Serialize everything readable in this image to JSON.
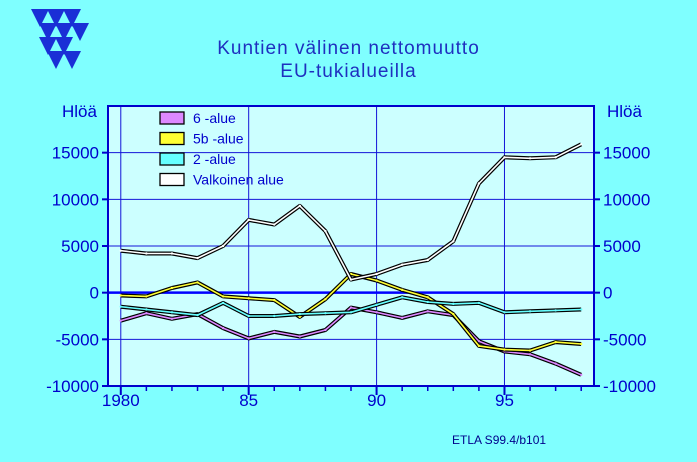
{
  "logo": {
    "name": "etla-logo",
    "color": "#1a2fd6"
  },
  "title_line1": "Kuntien  välinen  nettomuutto",
  "title_line2": "EU-tukialueilla",
  "source_note": "ETLA S99.4/b101",
  "colors": {
    "background": "#7fffff",
    "plot_background": "#ccffff",
    "axis": "#0000cc",
    "zero_line": "#0000ff",
    "grid": "#1414d8"
  },
  "chart_data": {
    "type": "line",
    "title": "Kuntien  välinen  nettomuutto EU-tukialueilla",
    "ylabel_left": "Hlöä",
    "ylabel_right": "Hlöä",
    "xlim": [
      1979.5,
      1998.5
    ],
    "ylim": [
      -10000,
      20000
    ],
    "x_ticks": [
      1980,
      1985,
      1990,
      1995
    ],
    "x_tick_labels": [
      "1980",
      "85",
      "90",
      "95"
    ],
    "y_ticks": [
      -10000,
      -5000,
      0,
      5000,
      10000,
      15000
    ],
    "y_tick_labels": [
      "-10000",
      "-5000",
      "0",
      "5000",
      "10000",
      "15000"
    ],
    "grid": true,
    "legend_position": "top-left",
    "x": [
      1980,
      1981,
      1982,
      1983,
      1984,
      1985,
      1986,
      1987,
      1988,
      1989,
      1990,
      1991,
      1992,
      1993,
      1994,
      1995,
      1996,
      1997,
      1998
    ],
    "series": [
      {
        "name": "6 -alue",
        "color": "#dd88ff",
        "values": [
          -3000,
          -2200,
          -2800,
          -2300,
          -3800,
          -4900,
          -4200,
          -4700,
          -4000,
          -1600,
          -2100,
          -2700,
          -2000,
          -2400,
          -5200,
          -6300,
          -6600,
          -7600,
          -8800
        ]
      },
      {
        "name": "5b -alue",
        "color": "#ffff33",
        "values": [
          -300,
          -400,
          500,
          1100,
          -400,
          -600,
          -800,
          -2600,
          -700,
          2000,
          1300,
          300,
          -500,
          -2300,
          -5700,
          -6100,
          -6200,
          -5300,
          -5500
        ]
      },
      {
        "name": "2 -alue",
        "color": "#66ffff",
        "values": [
          -1500,
          -1800,
          -2100,
          -2400,
          -1100,
          -2500,
          -2500,
          -2300,
          -2200,
          -2100,
          -1300,
          -500,
          -1000,
          -1200,
          -1100,
          -2100,
          -2000,
          -1900,
          -1800
        ]
      },
      {
        "name": "Valkoinen alue",
        "color": "#ffffff",
        "values": [
          4500,
          4200,
          4200,
          3700,
          5000,
          7800,
          7300,
          9300,
          6600,
          1400,
          2000,
          3000,
          3500,
          5500,
          11700,
          14500,
          14400,
          14500,
          15900
        ]
      }
    ]
  }
}
